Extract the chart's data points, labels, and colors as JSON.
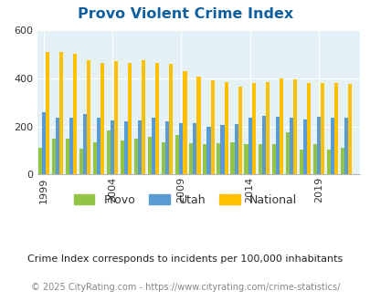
{
  "title": "Provo Violent Crime Index",
  "subtitle": "Crime Index corresponds to incidents per 100,000 inhabitants",
  "copyright": "© 2025 CityRating.com - https://www.cityrating.com/crime-statistics/",
  "years": [
    1999,
    2000,
    2001,
    2002,
    2003,
    2004,
    2005,
    2006,
    2007,
    2008,
    2009,
    2010,
    2011,
    2012,
    2013,
    2014,
    2015,
    2016,
    2017,
    2018,
    2019,
    2020,
    2021
  ],
  "provo": [
    110,
    148,
    150,
    108,
    135,
    185,
    140,
    148,
    155,
    135,
    165,
    130,
    125,
    130,
    135,
    128,
    128,
    128,
    175,
    105,
    125,
    105,
    113
  ],
  "utah": [
    258,
    235,
    235,
    253,
    235,
    225,
    220,
    225,
    238,
    220,
    215,
    215,
    200,
    205,
    210,
    238,
    243,
    240,
    235,
    230,
    240,
    235,
    238
  ],
  "national": [
    510,
    510,
    500,
    475,
    465,
    470,
    465,
    475,
    465,
    460,
    430,
    405,
    390,
    385,
    365,
    380,
    383,
    398,
    395,
    380,
    380,
    380,
    375
  ],
  "ylim": [
    0,
    600
  ],
  "yticks": [
    0,
    200,
    400,
    600
  ],
  "xtick_labels": [
    "1999",
    "2004",
    "2009",
    "2014",
    "2019"
  ],
  "xtick_positions": [
    1999,
    2004,
    2009,
    2014,
    2019
  ],
  "provo_color": "#92c445",
  "utah_color": "#5b9bd5",
  "national_color": "#ffc000",
  "bg_color": "#e4f2f7",
  "title_color": "#1060a0",
  "subtitle_color": "#222222",
  "copyright_color": "#888888",
  "bar_width": 0.27,
  "legend_labels": [
    "Provo",
    "Utah",
    "National"
  ]
}
